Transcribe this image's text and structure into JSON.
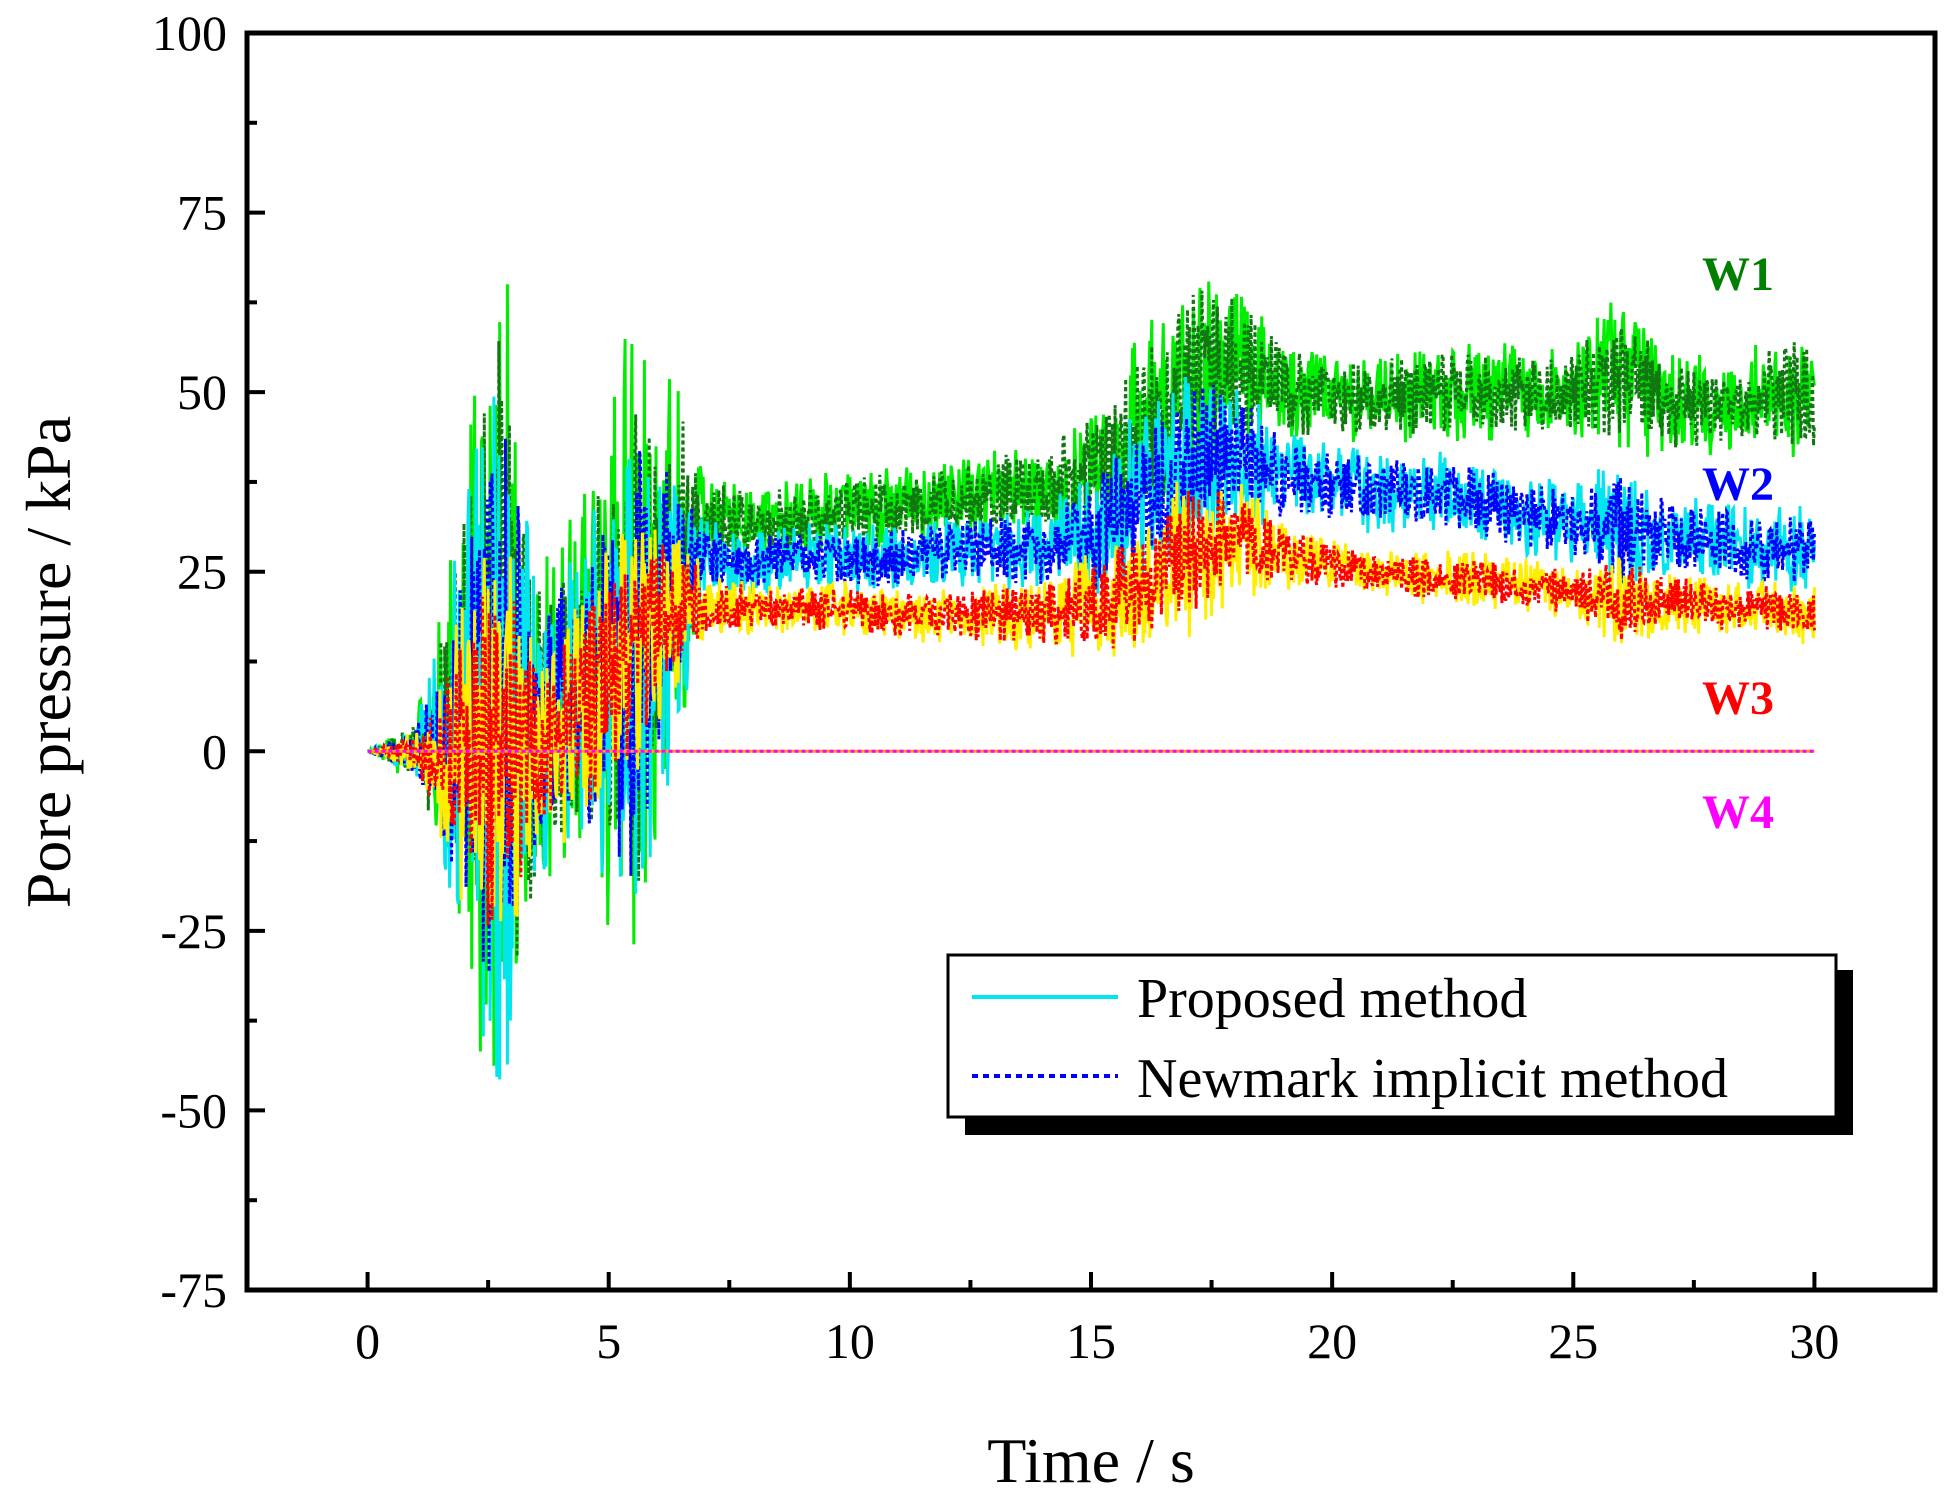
{
  "chart_data": {
    "type": "line",
    "title": "",
    "xlabel": "Time / s",
    "ylabel": "Pore pressure / kPa",
    "xlim": [
      -2.5,
      32.5
    ],
    "ylim": [
      -75,
      100
    ],
    "xticks": [
      0,
      5,
      10,
      15,
      20,
      25,
      30
    ],
    "yticks": [
      -75,
      -50,
      -25,
      0,
      25,
      50,
      75,
      100
    ],
    "xtick_labels": [
      "0",
      "5",
      "10",
      "15",
      "20",
      "25",
      "30"
    ],
    "ytick_labels": [
      "-75",
      "-50",
      "-25",
      "0",
      "25",
      "50",
      "75",
      "100"
    ],
    "legend": {
      "position": "bottom-right",
      "entries": [
        {
          "label": "Proposed method",
          "style": "solid",
          "color": "#00e5ee"
        },
        {
          "label": "Newmark implicit method",
          "style": "dotted",
          "color": "#0000ff"
        }
      ]
    },
    "series_labels": [
      {
        "name": "W1",
        "color": "#007f00"
      },
      {
        "name": "W2",
        "color": "#0000ff"
      },
      {
        "name": "W3",
        "color": "#ff0000"
      },
      {
        "name": "W4",
        "color": "#ff00ff"
      }
    ],
    "series": [
      {
        "name": "W1",
        "proposed_color": "#00ee00",
        "newmark_color": "#117711",
        "x": [
          0,
          1,
          2,
          2.7,
          3.5,
          4.5,
          5.5,
          6.5,
          7,
          8,
          9,
          10,
          11,
          12,
          13,
          14,
          15,
          16,
          17,
          18,
          19,
          20,
          21,
          22,
          23,
          24,
          25,
          26,
          27,
          28,
          29,
          30
        ],
        "mean": [
          0,
          0,
          5,
          8,
          3,
          10,
          18,
          25,
          32,
          32,
          32,
          34,
          34,
          35,
          36,
          36,
          38,
          44,
          50,
          54,
          50,
          50,
          49,
          50,
          50,
          50,
          50,
          53,
          48,
          48,
          50,
          50
        ],
        "amp": [
          0,
          5,
          35,
          70,
          25,
          30,
          50,
          28,
          7,
          6,
          6,
          6,
          6,
          6,
          7,
          7,
          12,
          15,
          18,
          12,
          8,
          7,
          7,
          7,
          7,
          7,
          7,
          12,
          8,
          7,
          8,
          10
        ]
      },
      {
        "name": "W2",
        "proposed_color": "#00e5ee",
        "newmark_color": "#0000ff",
        "x": [
          0,
          1,
          2,
          2.7,
          3.5,
          4.5,
          5.5,
          6.5,
          7,
          8,
          9,
          10,
          11,
          12,
          13,
          14,
          15,
          16,
          17,
          18,
          19,
          20,
          21,
          22,
          23,
          24,
          25,
          26,
          27,
          28,
          29,
          30
        ],
        "mean": [
          0,
          0,
          3,
          5,
          2,
          8,
          14,
          22,
          27,
          26,
          27,
          27,
          27,
          28,
          28,
          28,
          30,
          34,
          38,
          42,
          38,
          37,
          36,
          36,
          35,
          33,
          32,
          31,
          30,
          29,
          28,
          28
        ],
        "amp": [
          0,
          4,
          30,
          58,
          22,
          25,
          40,
          22,
          6,
          5,
          5,
          5,
          5,
          5,
          6,
          6,
          10,
          14,
          16,
          12,
          7,
          6,
          6,
          6,
          6,
          6,
          6,
          10,
          6,
          6,
          6,
          7
        ]
      },
      {
        "name": "W3",
        "proposed_color": "#ffee00",
        "newmark_color": "#ff0000",
        "x": [
          0,
          1,
          2,
          2.7,
          3.5,
          4.5,
          5.5,
          6.5,
          7,
          8,
          9,
          10,
          11,
          12,
          13,
          14,
          15,
          16,
          17,
          18,
          19,
          20,
          21,
          22,
          23,
          24,
          25,
          26,
          27,
          28,
          29,
          30
        ],
        "mean": [
          0,
          0,
          0,
          0,
          0,
          5,
          15,
          22,
          20,
          20,
          20,
          20,
          19,
          19,
          19,
          19,
          20,
          23,
          27,
          30,
          27,
          26,
          25,
          24,
          24,
          23,
          22,
          21,
          21,
          20,
          20,
          19
        ],
        "amp": [
          0,
          3,
          22,
          35,
          15,
          18,
          20,
          12,
          5,
          4,
          4,
          4,
          4,
          4,
          5,
          5,
          8,
          10,
          12,
          9,
          5,
          4,
          4,
          4,
          4,
          4,
          4,
          7,
          5,
          4,
          4,
          5
        ]
      },
      {
        "name": "W4",
        "proposed_color": "#ffaa00",
        "newmark_color": "#ff00ff",
        "x": [
          0,
          30
        ],
        "mean": [
          0,
          0
        ],
        "amp": [
          0,
          0
        ]
      }
    ]
  }
}
